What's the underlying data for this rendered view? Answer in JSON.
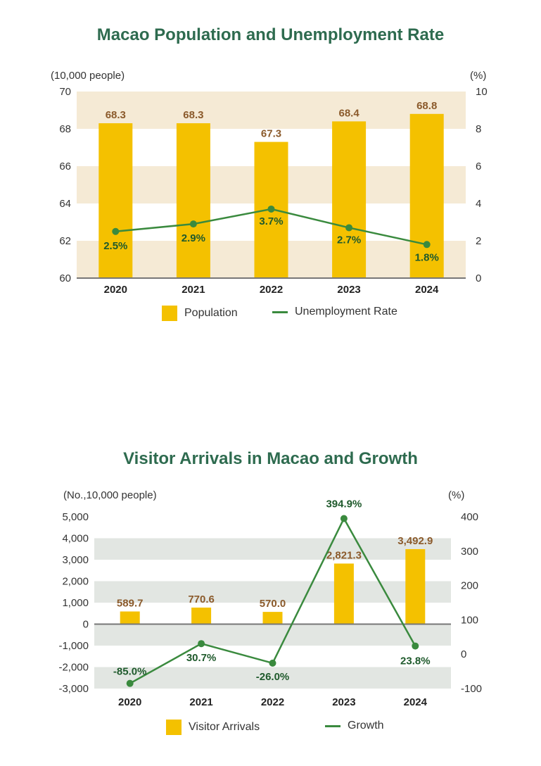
{
  "colors": {
    "title": "#2e6b4f",
    "bar": "#f4c100",
    "bar_label": "#8b5a2b",
    "line": "#3a8a3e",
    "line_label": "#1f5a2c",
    "band1": "#f5ead5",
    "band2": "#e2e6e2"
  },
  "chart_data": [
    {
      "type": "bar",
      "title": "Macao Population and Unemployment Rate",
      "categories": [
        "2020",
        "2021",
        "2022",
        "2023",
        "2024"
      ],
      "y_left_label": "(10,000 people)",
      "y_right_label": "(%)",
      "y_left_lim": [
        60,
        70
      ],
      "y_left_ticks": [
        "60",
        "62",
        "64",
        "66",
        "68",
        "70"
      ],
      "y_right_lim": [
        0,
        10
      ],
      "y_right_ticks": [
        "0",
        "2",
        "4",
        "6",
        "8",
        "10"
      ],
      "series": [
        {
          "name": "Population",
          "type": "bar",
          "axis": "left",
          "values": [
            68.3,
            68.3,
            67.3,
            68.4,
            68.8
          ],
          "labels": [
            "68.3",
            "68.3",
            "67.3",
            "68.4",
            "68.8"
          ]
        },
        {
          "name": "Unemployment Rate",
          "type": "line",
          "axis": "right",
          "values": [
            2.5,
            2.9,
            3.7,
            2.7,
            1.8
          ],
          "labels": [
            "2.5%",
            "2.9%",
            "3.7%",
            "2.7%",
            "1.8%"
          ]
        }
      ],
      "legend": [
        "Population",
        "Unemployment Rate"
      ],
      "legend_position": "bottom",
      "grid": "alternating horizontal bands"
    },
    {
      "type": "bar",
      "title": "Visitor Arrivals in Macao and Growth",
      "categories": [
        "2020",
        "2021",
        "2022",
        "2023",
        "2024"
      ],
      "y_left_label": "(No.,10,000 people)",
      "y_right_label": "(%)",
      "y_left_lim": [
        -3000,
        5000
      ],
      "y_left_ticks": [
        "-3,000",
        "-2,000",
        "-1,000",
        "0",
        "1,000",
        "2,000",
        "3,000",
        "4,000",
        "5,000"
      ],
      "y_right_lim": [
        -100,
        400
      ],
      "y_right_ticks": [
        "-100",
        "0",
        "100",
        "200",
        "300",
        "400"
      ],
      "series": [
        {
          "name": "Visitor Arrivals",
          "type": "bar",
          "axis": "left",
          "values": [
            589.7,
            770.6,
            570.0,
            2821.3,
            3492.9
          ],
          "labels": [
            "589.7",
            "770.6",
            "570.0",
            "2,821.3",
            "3,492.9"
          ]
        },
        {
          "name": "Growth",
          "type": "line",
          "axis": "right",
          "values": [
            -85.0,
            30.7,
            -26.0,
            394.9,
            23.8
          ],
          "labels": [
            "-85.0%",
            "30.7%",
            "-26.0%",
            "394.9%",
            "23.8%"
          ]
        }
      ],
      "legend": [
        "Visitor Arrivals",
        "Growth"
      ],
      "legend_position": "bottom",
      "grid": "alternating horizontal bands"
    }
  ]
}
